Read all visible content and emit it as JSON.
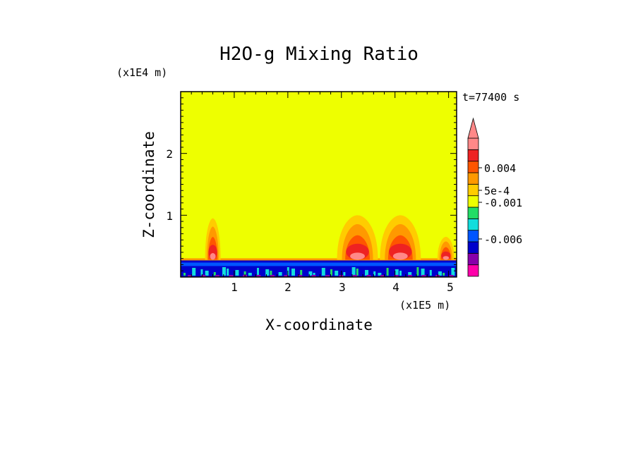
{
  "chart_data": {
    "type": "heatmap",
    "title": "H2O-g Mixing Ratio",
    "xlabel": "X-coordinate",
    "ylabel": "Z-coordinate",
    "x_unit": "(x1E5 m)",
    "y_unit": "(x1E4 m)",
    "time_label": "t=77400 s",
    "xlim": [
      0,
      5.15
    ],
    "ylim": [
      0,
      3.0
    ],
    "x_ticks": [
      "1",
      "2",
      "3",
      "4",
      "5"
    ],
    "y_ticks": [
      "1",
      "2"
    ],
    "background_color": "#eeff00",
    "colorbar": {
      "levels": [
        "0.004",
        "5e-4",
        "-0.001",
        "-0.006"
      ],
      "colors": [
        "#ff00aa",
        "#8800aa",
        "#0000cc",
        "#0055ff",
        "#11dddd",
        "#22dd66",
        "#eeff00",
        "#ffcc00",
        "#ff9900",
        "#ff5500",
        "#ee2222",
        "#ff8888"
      ]
    },
    "features": [
      {
        "x": 0.6,
        "top": 0.95
      },
      {
        "x": 3.3,
        "top": 1.0
      },
      {
        "x": 4.1,
        "top": 1.0
      },
      {
        "x": 4.95,
        "top": 0.65
      }
    ],
    "surface_layer_top": 0.28
  }
}
